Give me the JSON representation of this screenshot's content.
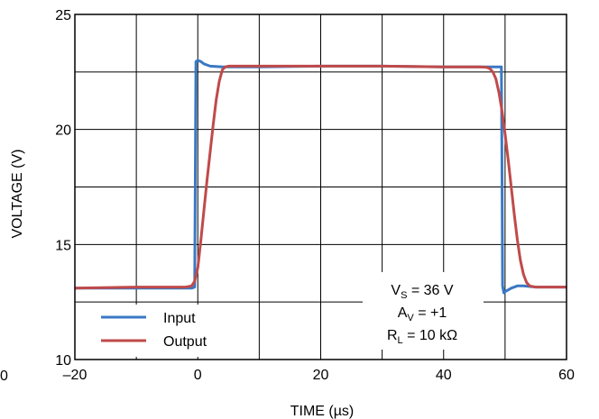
{
  "chart_data": {
    "type": "line",
    "xlabel": "TIME (µs)",
    "ylabel": "VOLTAGE (V)",
    "xlim": [
      -20,
      60
    ],
    "ylim": [
      10,
      25
    ],
    "x_ticks": [
      -20,
      -10,
      0,
      10,
      20,
      30,
      40,
      50,
      60
    ],
    "x_tick_labels": [
      "–20",
      "",
      "0",
      "",
      "20",
      "",
      "40",
      "",
      "60"
    ],
    "y_ticks": [
      10,
      12.5,
      15,
      17.5,
      20,
      22.5,
      25
    ],
    "y_tick_labels": [
      "10",
      "",
      "15",
      "",
      "20",
      "",
      "25"
    ],
    "stray_label": "0",
    "grid": true,
    "legend_position": "bottom-left",
    "series": [
      {
        "name": "Input",
        "color": "#3a78c4",
        "x": [
          -20,
          -10,
          -1,
          -0.5,
          -0.4,
          -0.3,
          0,
          0.5,
          1,
          2,
          4,
          10,
          20,
          30,
          40,
          48,
          49.4,
          49.5,
          49.6,
          49.8,
          50,
          51,
          52,
          53,
          55,
          60
        ],
        "y": [
          13.1,
          13.1,
          13.1,
          13.15,
          18,
          22.95,
          23.0,
          22.95,
          22.85,
          22.75,
          22.72,
          22.72,
          22.75,
          22.75,
          22.72,
          22.72,
          22.72,
          18,
          13.2,
          12.9,
          12.95,
          13.1,
          13.2,
          13.2,
          13.15,
          13.15
        ]
      },
      {
        "name": "Output",
        "color": "#c04a4a",
        "x": [
          -20,
          -10,
          -2,
          -1,
          -0.5,
          0,
          0.5,
          1,
          1.5,
          2,
          2.5,
          3,
          3.5,
          4,
          4.5,
          5,
          6,
          10,
          20,
          30,
          40,
          46,
          47,
          47.5,
          48,
          48.5,
          49,
          49.5,
          50,
          50.5,
          51,
          51.5,
          52,
          52.5,
          53,
          53.5,
          54,
          55,
          60
        ],
        "y": [
          13.1,
          13.15,
          13.15,
          13.2,
          13.4,
          14.0,
          15.2,
          16.5,
          17.8,
          19.0,
          20.2,
          21.3,
          22.1,
          22.6,
          22.72,
          22.75,
          22.75,
          22.75,
          22.75,
          22.75,
          22.72,
          22.72,
          22.7,
          22.65,
          22.5,
          22.2,
          21.6,
          20.8,
          19.8,
          18.7,
          17.5,
          16.3,
          15.2,
          14.3,
          13.7,
          13.35,
          13.2,
          13.15,
          13.15
        ]
      }
    ],
    "annotation": {
      "line1_main": "V",
      "line1_sub": "S",
      "line1_rest": " = 36 V",
      "line2_main": "A",
      "line2_sub": "V",
      "line2_rest": " = +1",
      "line3_main": "R",
      "line3_sub": "L",
      "line3_rest": " = 10 kΩ"
    }
  }
}
